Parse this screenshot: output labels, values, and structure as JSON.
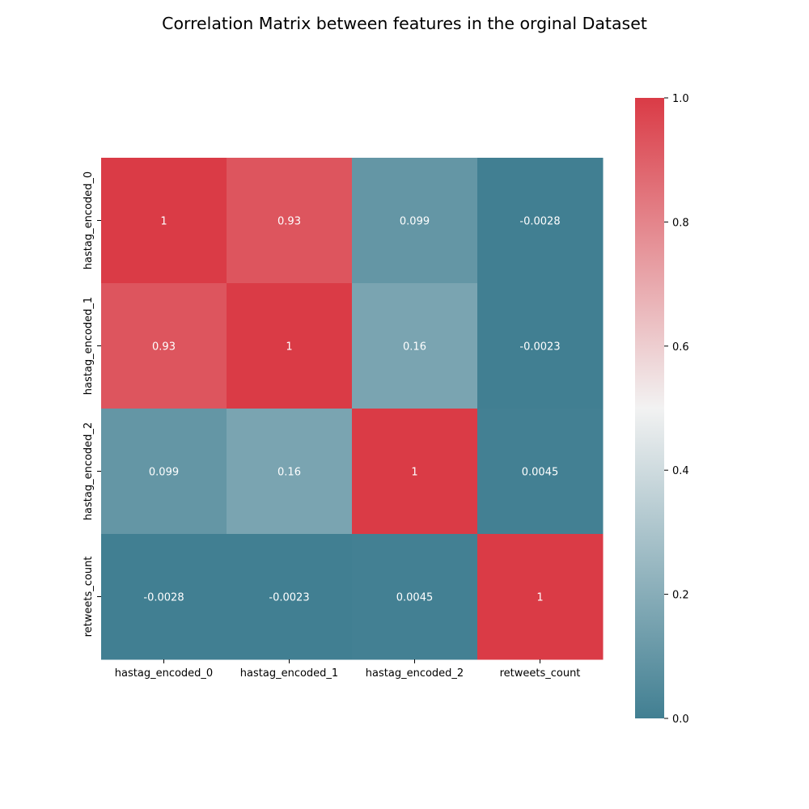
{
  "chart_data": {
    "type": "heatmap",
    "title": "Correlation Matrix between features in the orginal Dataset",
    "x_labels": [
      "hastag_encoded_0",
      "hastag_encoded_1",
      "hastag_encoded_2",
      "retweets_count"
    ],
    "y_labels": [
      "hastag_encoded_0",
      "hastag_encoded_1",
      "hastag_encoded_2",
      "retweets_count"
    ],
    "values": [
      [
        1,
        0.93,
        0.099,
        -0.0028
      ],
      [
        0.93,
        1,
        0.16,
        -0.0023
      ],
      [
        0.099,
        0.16,
        1,
        0.0045
      ],
      [
        -0.0028,
        -0.0023,
        0.0045,
        1
      ]
    ],
    "cell_labels": [
      [
        "1",
        "0.93",
        "0.099",
        "-0.0028"
      ],
      [
        "0.93",
        "1",
        "0.16",
        "-0.0023"
      ],
      [
        "0.099",
        "0.16",
        "1",
        "0.0045"
      ],
      [
        "-0.0028",
        "-0.0023",
        "0.0045",
        "1"
      ]
    ],
    "colorbar": {
      "range": [
        0.0,
        1.0
      ],
      "ticks": [
        0.0,
        0.2,
        0.4,
        0.6,
        0.8,
        1.0
      ],
      "tick_labels": [
        "0.0",
        "0.2",
        "0.4",
        "0.6",
        "0.8",
        "1.0"
      ],
      "colors": {
        "low": "#417f92",
        "mid": "#f2f2f2",
        "high": "#da3b46"
      }
    },
    "annotation_color": "#ffffff",
    "grid": false,
    "legend": "colorbar-right"
  }
}
